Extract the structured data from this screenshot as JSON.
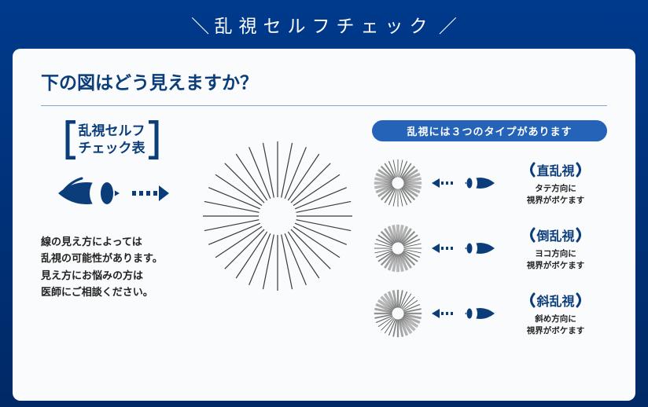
{
  "colors": {
    "bg_top": "#003a8c",
    "bg_bottom": "#002966",
    "card": "#fafbfc",
    "accent": "#0a3d7a",
    "pill": "#2563b8",
    "divider": "#7fa8d4",
    "text": "#222222",
    "dial_line": "#3a3a3a"
  },
  "header": "乱視セルフチェック",
  "question": "下の図はどう見えますか？",
  "left": {
    "bracket_title_line1": "乱視セルフ",
    "bracket_title_line2": "チェック表",
    "note_line1": "線の見え方によっては",
    "note_line2": "乱視の可能性があります。",
    "note_line3": "見え方にお悩みの方は",
    "note_line4": "医師にご相談ください。"
  },
  "dial": {
    "spokes": 32,
    "outer_radius": 95,
    "inner_radius": 24,
    "stroke_width": 1.2
  },
  "mini_dial": {
    "spokes": 32,
    "outer_radius": 32,
    "inner_radius": 8,
    "stroke_width": 1.5
  },
  "right": {
    "pill": "乱視には３つのタイプがあります",
    "types": [
      {
        "name": "直乱視",
        "desc_line1": "タテ方向に",
        "desc_line2": "視界がボケます",
        "blur_axis": "horizontal"
      },
      {
        "name": "倒乱視",
        "desc_line1": "ヨコ方向に",
        "desc_line2": "視界がボケます",
        "blur_axis": "vertical"
      },
      {
        "name": "斜乱視",
        "desc_line1": "斜め方向に",
        "desc_line2": "視界がボケます",
        "blur_axis": "diagonal"
      }
    ]
  }
}
